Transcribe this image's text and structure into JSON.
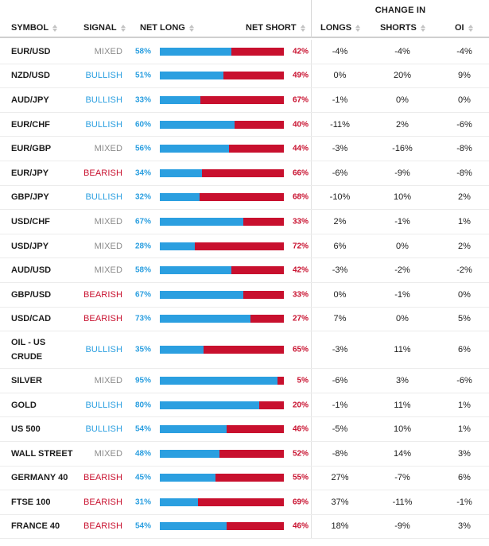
{
  "header": {
    "change_in": "CHANGE IN",
    "symbol": "SYMBOL",
    "signal": "SIGNAL",
    "net_long": "NET LONG",
    "net_short": "NET SHORT",
    "longs": "LONGS",
    "shorts": "SHORTS",
    "oi": "OI"
  },
  "colors": {
    "long": "#2b9fe0",
    "short": "#c8102e",
    "mixed": "#8a8a8a"
  },
  "rows": [
    {
      "symbol": "EUR/USD",
      "signal": "MIXED",
      "net_long": "58%",
      "net_short": "42%",
      "long_fraction": 0.58,
      "longs": "-4%",
      "shorts": "-4%",
      "oi": "-4%"
    },
    {
      "symbol": "NZD/USD",
      "signal": "BULLISH",
      "net_long": "51%",
      "net_short": "49%",
      "long_fraction": 0.51,
      "longs": "0%",
      "shorts": "20%",
      "oi": "9%"
    },
    {
      "symbol": "AUD/JPY",
      "signal": "BULLISH",
      "net_long": "33%",
      "net_short": "67%",
      "long_fraction": 0.33,
      "longs": "-1%",
      "shorts": "0%",
      "oi": "0%"
    },
    {
      "symbol": "EUR/CHF",
      "signal": "BULLISH",
      "net_long": "60%",
      "net_short": "40%",
      "long_fraction": 0.6,
      "longs": "-11%",
      "shorts": "2%",
      "oi": "-6%"
    },
    {
      "symbol": "EUR/GBP",
      "signal": "MIXED",
      "net_long": "56%",
      "net_short": "44%",
      "long_fraction": 0.56,
      "longs": "-3%",
      "shorts": "-16%",
      "oi": "-8%"
    },
    {
      "symbol": "EUR/JPY",
      "signal": "BEARISH",
      "net_long": "34%",
      "net_short": "66%",
      "long_fraction": 0.34,
      "longs": "-6%",
      "shorts": "-9%",
      "oi": "-8%"
    },
    {
      "symbol": "GBP/JPY",
      "signal": "BULLISH",
      "net_long": "32%",
      "net_short": "68%",
      "long_fraction": 0.32,
      "longs": "-10%",
      "shorts": "10%",
      "oi": "2%"
    },
    {
      "symbol": "USD/CHF",
      "signal": "MIXED",
      "net_long": "67%",
      "net_short": "33%",
      "long_fraction": 0.67,
      "longs": "2%",
      "shorts": "-1%",
      "oi": "1%"
    },
    {
      "symbol": "USD/JPY",
      "signal": "MIXED",
      "net_long": "28%",
      "net_short": "72%",
      "long_fraction": 0.28,
      "longs": "6%",
      "shorts": "0%",
      "oi": "2%"
    },
    {
      "symbol": "AUD/USD",
      "signal": "MIXED",
      "net_long": "58%",
      "net_short": "42%",
      "long_fraction": 0.58,
      "longs": "-3%",
      "shorts": "-2%",
      "oi": "-2%"
    },
    {
      "symbol": "GBP/USD",
      "signal": "BEARISH",
      "net_long": "67%",
      "net_short": "33%",
      "long_fraction": 0.67,
      "longs": "0%",
      "shorts": "-1%",
      "oi": "0%"
    },
    {
      "symbol": "USD/CAD",
      "signal": "BEARISH",
      "net_long": "73%",
      "net_short": "27%",
      "long_fraction": 0.73,
      "longs": "7%",
      "shorts": "0%",
      "oi": "5%"
    },
    {
      "symbol": "OIL - US CRUDE",
      "signal": "BULLISH",
      "net_long": "35%",
      "net_short": "65%",
      "long_fraction": 0.35,
      "longs": "-3%",
      "shorts": "11%",
      "oi": "6%",
      "tall": true
    },
    {
      "symbol": "SILVER",
      "signal": "MIXED",
      "net_long": "95%",
      "net_short": "5%",
      "long_fraction": 0.95,
      "longs": "-6%",
      "shorts": "3%",
      "oi": "-6%"
    },
    {
      "symbol": "GOLD",
      "signal": "BULLISH",
      "net_long": "80%",
      "net_short": "20%",
      "long_fraction": 0.8,
      "longs": "-1%",
      "shorts": "11%",
      "oi": "1%"
    },
    {
      "symbol": "US 500",
      "signal": "BULLISH",
      "net_long": "54%",
      "net_short": "46%",
      "long_fraction": 0.54,
      "longs": "-5%",
      "shorts": "10%",
      "oi": "1%"
    },
    {
      "symbol": "WALL STREET",
      "signal": "MIXED",
      "net_long": "48%",
      "net_short": "52%",
      "long_fraction": 0.48,
      "longs": "-8%",
      "shorts": "14%",
      "oi": "3%"
    },
    {
      "symbol": "GERMANY 40",
      "signal": "BEARISH",
      "net_long": "45%",
      "net_short": "55%",
      "long_fraction": 0.45,
      "longs": "27%",
      "shorts": "-7%",
      "oi": "6%"
    },
    {
      "symbol": "FTSE 100",
      "signal": "BEARISH",
      "net_long": "31%",
      "net_short": "69%",
      "long_fraction": 0.31,
      "longs": "37%",
      "shorts": "-11%",
      "oi": "-1%"
    },
    {
      "symbol": "FRANCE 40",
      "signal": "BEARISH",
      "net_long": "54%",
      "net_short": "46%",
      "long_fraction": 0.54,
      "longs": "18%",
      "shorts": "-9%",
      "oi": "3%"
    }
  ]
}
